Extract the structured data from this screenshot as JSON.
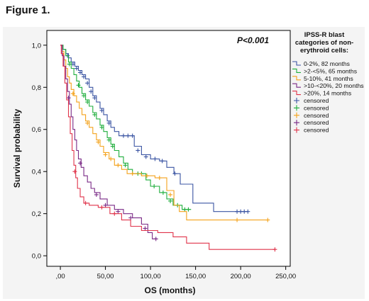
{
  "figure_label": "Figure 1.",
  "chart_data": {
    "type": "line",
    "step": true,
    "xlabel": "OS (months)",
    "ylabel": "Survival probability",
    "xlim": [
      -15,
      255
    ],
    "ylim": [
      -0.05,
      1.07
    ],
    "x_ticks": [
      0,
      50,
      100,
      150,
      200,
      250
    ],
    "x_tick_labels": [
      ",00",
      "50,00",
      "100,00",
      "150,00",
      "200,00",
      "250,00"
    ],
    "y_ticks": [
      0,
      0.2,
      0.4,
      0.6,
      0.8,
      1.0
    ],
    "y_tick_labels": [
      "0,0",
      "0,2",
      "0,4",
      "0,6",
      "0,8",
      "1,0"
    ],
    "annotation": "P<0.001",
    "legend": {
      "title_lines": [
        "IPSS-R blast",
        "categories of non-",
        "erythroid cells:"
      ],
      "placement": "right",
      "entries": [
        {
          "label": "0-2%, 82 months",
          "kind": "line",
          "color": "#3b55a3"
        },
        {
          "label": ">2-<5%, 65 months",
          "kind": "line",
          "color": "#1fae3c"
        },
        {
          "label": "5-10%, 41 months",
          "kind": "line",
          "color": "#f4a21b"
        },
        {
          "label": ">10-<20%, 20 months",
          "kind": "line",
          "color": "#7a2a86"
        },
        {
          "label": ">20%, 14 months",
          "kind": "line",
          "color": "#e0334a"
        },
        {
          "label": "censored",
          "kind": "censor",
          "color": "#3b55a3"
        },
        {
          "label": "censored",
          "kind": "censor",
          "color": "#1fae3c"
        },
        {
          "label": "censored",
          "kind": "censor",
          "color": "#f4a21b"
        },
        {
          "label": "censored",
          "kind": "censor",
          "color": "#7a2a86"
        },
        {
          "label": "censored",
          "kind": "censor",
          "color": "#e0334a"
        }
      ]
    },
    "series": [
      {
        "name": "0-2%, 82 months",
        "color": "#3b55a3",
        "steps": [
          [
            0,
            1.0
          ],
          [
            3,
            0.98
          ],
          [
            6,
            0.96
          ],
          [
            9,
            0.94
          ],
          [
            12,
            0.92
          ],
          [
            16,
            0.9
          ],
          [
            20,
            0.88
          ],
          [
            24,
            0.86
          ],
          [
            28,
            0.84
          ],
          [
            32,
            0.8
          ],
          [
            36,
            0.76
          ],
          [
            40,
            0.73
          ],
          [
            44,
            0.7
          ],
          [
            48,
            0.67
          ],
          [
            52,
            0.64
          ],
          [
            56,
            0.61
          ],
          [
            60,
            0.59
          ],
          [
            65,
            0.57
          ],
          [
            82,
            0.52
          ],
          [
            90,
            0.48
          ],
          [
            100,
            0.46
          ],
          [
            110,
            0.45
          ],
          [
            118,
            0.42
          ],
          [
            126,
            0.39
          ],
          [
            133,
            0.34
          ],
          [
            147,
            0.25
          ],
          [
            170,
            0.21
          ],
          [
            208,
            0.21
          ]
        ],
        "censored": [
          [
            8,
            0.95
          ],
          [
            14,
            0.91
          ],
          [
            18,
            0.89
          ],
          [
            22,
            0.87
          ],
          [
            26,
            0.85
          ],
          [
            30,
            0.82
          ],
          [
            34,
            0.78
          ],
          [
            38,
            0.75
          ],
          [
            46,
            0.69
          ],
          [
            54,
            0.63
          ],
          [
            70,
            0.57
          ],
          [
            75,
            0.57
          ],
          [
            80,
            0.57
          ],
          [
            86,
            0.5
          ],
          [
            95,
            0.47
          ],
          [
            105,
            0.46
          ],
          [
            113,
            0.45
          ],
          [
            127,
            0.39
          ],
          [
            196,
            0.21
          ],
          [
            200,
            0.21
          ],
          [
            204,
            0.21
          ],
          [
            208,
            0.21
          ]
        ]
      },
      {
        "name": ">2-<5%, 65 months",
        "color": "#1fae3c",
        "steps": [
          [
            0,
            1.0
          ],
          [
            3,
            0.98
          ],
          [
            6,
            0.95
          ],
          [
            9,
            0.92
          ],
          [
            12,
            0.89
          ],
          [
            15,
            0.86
          ],
          [
            18,
            0.83
          ],
          [
            21,
            0.8
          ],
          [
            24,
            0.77
          ],
          [
            28,
            0.74
          ],
          [
            32,
            0.71
          ],
          [
            36,
            0.68
          ],
          [
            40,
            0.65
          ],
          [
            44,
            0.62
          ],
          [
            48,
            0.59
          ],
          [
            52,
            0.56
          ],
          [
            56,
            0.53
          ],
          [
            60,
            0.5
          ],
          [
            65,
            0.47
          ],
          [
            70,
            0.44
          ],
          [
            75,
            0.41
          ],
          [
            80,
            0.39
          ],
          [
            95,
            0.36
          ],
          [
            100,
            0.33
          ],
          [
            110,
            0.3
          ],
          [
            118,
            0.27
          ],
          [
            125,
            0.24
          ],
          [
            135,
            0.22
          ],
          [
            145,
            0.22
          ]
        ],
        "censored": [
          [
            10,
            0.91
          ],
          [
            20,
            0.81
          ],
          [
            26,
            0.76
          ],
          [
            30,
            0.73
          ],
          [
            38,
            0.67
          ],
          [
            46,
            0.61
          ],
          [
            54,
            0.55
          ],
          [
            58,
            0.52
          ],
          [
            72,
            0.43
          ],
          [
            86,
            0.39
          ],
          [
            90,
            0.39
          ],
          [
            104,
            0.33
          ],
          [
            114,
            0.3
          ],
          [
            122,
            0.26
          ],
          [
            130,
            0.24
          ],
          [
            138,
            0.22
          ],
          [
            142,
            0.22
          ]
        ]
      },
      {
        "name": "5-10%, 41 months",
        "color": "#f4a21b",
        "steps": [
          [
            0,
            1.0
          ],
          [
            2,
            0.97
          ],
          [
            4,
            0.93
          ],
          [
            6,
            0.89
          ],
          [
            8,
            0.85
          ],
          [
            10,
            0.82
          ],
          [
            12,
            0.79
          ],
          [
            15,
            0.76
          ],
          [
            18,
            0.73
          ],
          [
            21,
            0.7
          ],
          [
            24,
            0.67
          ],
          [
            28,
            0.64
          ],
          [
            32,
            0.61
          ],
          [
            36,
            0.58
          ],
          [
            40,
            0.55
          ],
          [
            44,
            0.52
          ],
          [
            48,
            0.49
          ],
          [
            54,
            0.46
          ],
          [
            60,
            0.43
          ],
          [
            68,
            0.41
          ],
          [
            74,
            0.39
          ],
          [
            90,
            0.38
          ],
          [
            105,
            0.37
          ],
          [
            118,
            0.31
          ],
          [
            126,
            0.24
          ],
          [
            132,
            0.21
          ],
          [
            140,
            0.17
          ],
          [
            230,
            0.17
          ]
        ],
        "censored": [
          [
            14,
            0.77
          ],
          [
            30,
            0.63
          ],
          [
            42,
            0.54
          ],
          [
            50,
            0.48
          ],
          [
            56,
            0.46
          ],
          [
            64,
            0.43
          ],
          [
            80,
            0.39
          ],
          [
            96,
            0.38
          ],
          [
            110,
            0.37
          ],
          [
            122,
            0.29
          ],
          [
            196,
            0.17
          ],
          [
            230,
            0.17
          ]
        ]
      },
      {
        "name": ">10-<20%, 20 months",
        "color": "#7a2a86",
        "steps": [
          [
            0,
            1.0
          ],
          [
            2,
            0.95
          ],
          [
            4,
            0.9
          ],
          [
            6,
            0.84
          ],
          [
            8,
            0.78
          ],
          [
            10,
            0.72
          ],
          [
            12,
            0.66
          ],
          [
            14,
            0.6
          ],
          [
            16,
            0.55
          ],
          [
            18,
            0.5
          ],
          [
            20,
            0.46
          ],
          [
            23,
            0.42
          ],
          [
            26,
            0.38
          ],
          [
            30,
            0.35
          ],
          [
            34,
            0.32
          ],
          [
            38,
            0.3
          ],
          [
            44,
            0.27
          ],
          [
            52,
            0.24
          ],
          [
            60,
            0.22
          ],
          [
            70,
            0.2
          ],
          [
            80,
            0.18
          ],
          [
            90,
            0.15
          ],
          [
            97,
            0.11
          ],
          [
            102,
            0.08
          ],
          [
            107,
            0.08
          ]
        ],
        "censored": [
          [
            9,
            0.75
          ],
          [
            22,
            0.44
          ],
          [
            40,
            0.29
          ],
          [
            50,
            0.24
          ],
          [
            64,
            0.21
          ],
          [
            78,
            0.18
          ],
          [
            94,
            0.13
          ],
          [
            106,
            0.08
          ]
        ]
      },
      {
        "name": ">20%, 14 months",
        "color": "#e0334a",
        "steps": [
          [
            0,
            1.0
          ],
          [
            1,
            0.96
          ],
          [
            3,
            0.9
          ],
          [
            5,
            0.82
          ],
          [
            7,
            0.74
          ],
          [
            9,
            0.66
          ],
          [
            11,
            0.58
          ],
          [
            13,
            0.5
          ],
          [
            15,
            0.43
          ],
          [
            17,
            0.37
          ],
          [
            19,
            0.32
          ],
          [
            22,
            0.28
          ],
          [
            26,
            0.25
          ],
          [
            32,
            0.24
          ],
          [
            42,
            0.23
          ],
          [
            55,
            0.2
          ],
          [
            68,
            0.17
          ],
          [
            78,
            0.14
          ],
          [
            90,
            0.12
          ],
          [
            108,
            0.11
          ],
          [
            125,
            0.09
          ],
          [
            140,
            0.06
          ],
          [
            165,
            0.03
          ],
          [
            238,
            0.03
          ]
        ],
        "censored": [
          [
            16,
            0.4
          ],
          [
            28,
            0.25
          ],
          [
            46,
            0.23
          ],
          [
            60,
            0.2
          ],
          [
            238,
            0.03
          ]
        ]
      }
    ]
  }
}
